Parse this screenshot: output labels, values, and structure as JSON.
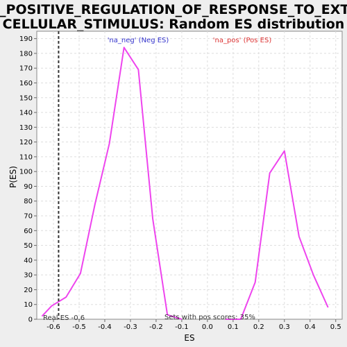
{
  "chart_data": {
    "type": "line",
    "title_line1": "GO_POSITIVE_REGULATION_OF_RESPONSE_TO_EXTRA",
    "title_line2": "CELLULAR_STIMULUS: Random ES distribution",
    "xlabel": "ES",
    "ylabel": "P(ES)",
    "xlim": [
      -0.665,
      0.525
    ],
    "ylim": [
      0,
      195
    ],
    "xticks": [
      -0.6,
      -0.5,
      -0.4,
      -0.3,
      -0.2,
      -0.1,
      0.0,
      0.1,
      0.2,
      0.3,
      0.4,
      0.5
    ],
    "xtick_labels": [
      "-0.6",
      "-0.5",
      "-0.4",
      "-0.3",
      "-0.2",
      "-0.1",
      "0.0",
      "0.1",
      "0.2",
      "0.3",
      "0.4",
      "0.5"
    ],
    "yticks": [
      0,
      10,
      20,
      30,
      40,
      50,
      60,
      70,
      80,
      90,
      100,
      110,
      120,
      130,
      140,
      150,
      160,
      170,
      180,
      190
    ],
    "grid": true,
    "line_color": "#ee44ee",
    "series": [
      {
        "name": "'na_neg' (Neg ES)",
        "x": [
          -0.645,
          -0.607,
          -0.551,
          -0.495,
          -0.438,
          -0.382,
          -0.325,
          -0.269,
          -0.213,
          -0.156,
          -0.1
        ],
        "y": [
          2,
          9,
          15,
          31,
          78,
          119,
          184,
          169,
          68,
          3,
          0
        ]
      },
      {
        "name": "'na_pos' (Pos ES)",
        "x": [
          0.07,
          0.13,
          0.186,
          0.243,
          0.3,
          0.357,
          0.413,
          0.47
        ],
        "y": [
          0,
          0,
          25,
          99,
          114,
          56,
          30,
          8
        ]
      }
    ],
    "real_es": -0.58,
    "real_es_label": "Real ES -0.6",
    "pos_scores_label": "Sets with pos scores: 35%"
  }
}
